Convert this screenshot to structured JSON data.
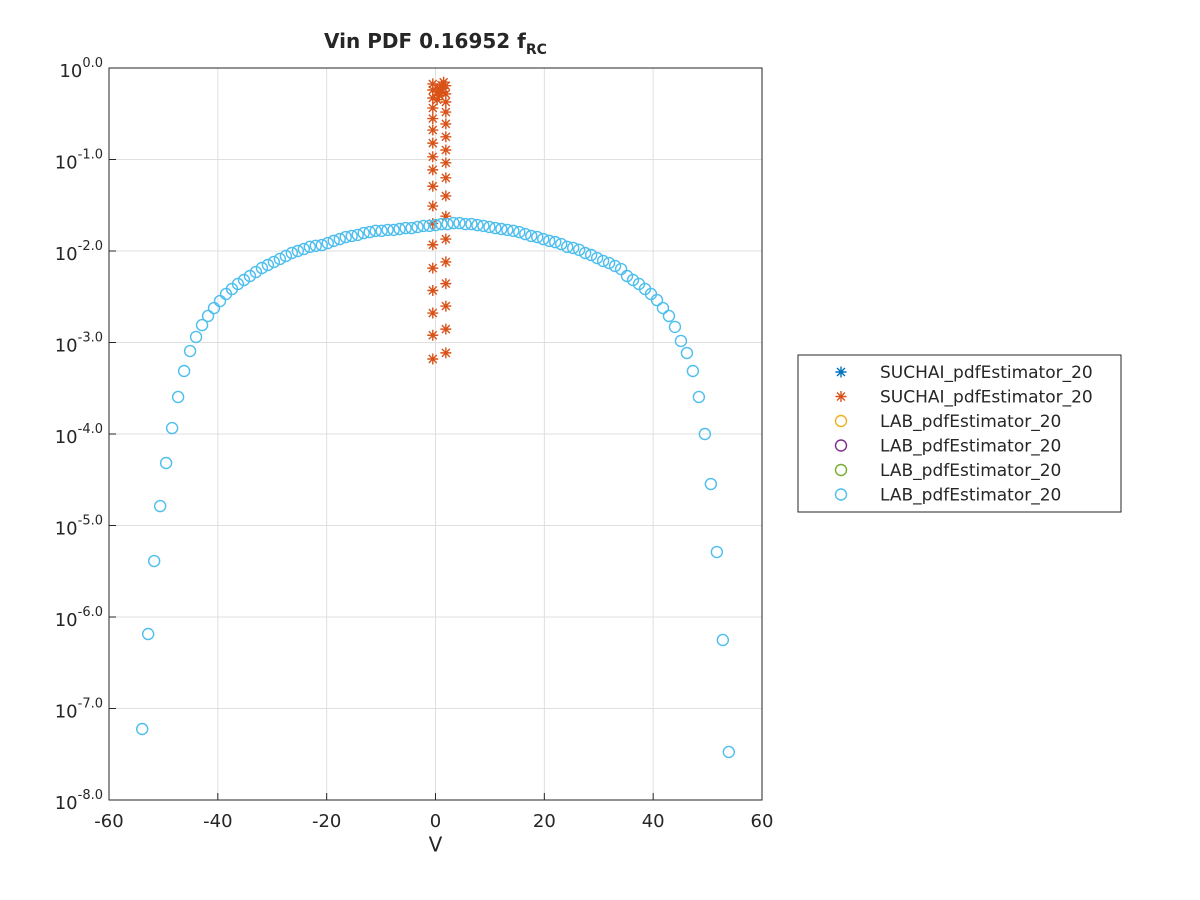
{
  "chart_data": {
    "type": "scatter",
    "title": "Vin PDF 0.16952 f_RC",
    "x_label": "V",
    "xlim": [
      -60,
      60
    ],
    "xticks": [
      -60,
      -40,
      -20,
      0,
      20,
      40,
      60
    ],
    "ylim": [
      1e-08,
      1
    ],
    "log_y": true,
    "grid": true,
    "legend_position": "east-outside",
    "yticks": [
      {
        "value": 1e-08,
        "label": "10^-8.0"
      },
      {
        "value": 1e-07,
        "label": "10^-7.0"
      },
      {
        "value": 1e-06,
        "label": "10^-6.0"
      },
      {
        "value": 1e-05,
        "label": "10^-5.0"
      },
      {
        "value": 0.0001,
        "label": "10^-4.0"
      },
      {
        "value": 0.001,
        "label": "10^-3.0"
      },
      {
        "value": 0.01,
        "label": "10^-2.0"
      },
      {
        "value": 0.1,
        "label": "10^-1.0"
      },
      {
        "value": 1,
        "label": "10^0.0"
      }
    ],
    "series": [
      {
        "name": "SUCHAI_pdfEstimator_20",
        "color": "#0072BD",
        "marker": "star",
        "x": [],
        "values": []
      },
      {
        "name": "SUCHAI_pdfEstimator_20",
        "color": "#D95319",
        "marker": "star",
        "x": [
          -0.5,
          -0.5,
          -0.5,
          -0.5,
          -0.5,
          -0.5,
          -0.5,
          -0.5,
          -0.5,
          -0.5,
          -0.5,
          -0.5,
          -0.5,
          -0.5,
          -0.5,
          -0.5,
          -0.5,
          -0.5,
          1.9,
          1.9,
          1.9,
          1.9,
          1.9,
          1.9,
          1.9,
          1.9,
          1.9,
          1.9,
          1.9,
          1.9,
          1.9,
          1.9,
          1.9,
          1.9,
          1.9,
          0.3,
          0.7,
          1.1,
          1.5,
          0.3,
          0.7,
          1.1,
          1.5
        ],
        "values": [
          0.00066,
          0.0012,
          0.0021,
          0.0037,
          0.0065,
          0.0117,
          0.02,
          0.031,
          0.051,
          0.077,
          0.107,
          0.151,
          0.21,
          0.28,
          0.365,
          0.47,
          0.575,
          0.67,
          0.00077,
          0.0014,
          0.0025,
          0.0044,
          0.0076,
          0.0135,
          0.024,
          0.04,
          0.063,
          0.092,
          0.127,
          0.177,
          0.245,
          0.33,
          0.425,
          0.52,
          0.64,
          0.55,
          0.6,
          0.65,
          0.7,
          0.45,
          0.5,
          0.55,
          0.6
        ]
      },
      {
        "name": "LAB_pdfEstimator_20",
        "color": "#EDB120",
        "marker": "circle",
        "x": [],
        "values": []
      },
      {
        "name": "LAB_pdfEstimator_20",
        "color": "#7E2F8E",
        "marker": "circle",
        "x": [],
        "values": []
      },
      {
        "name": "LAB_pdfEstimator_20",
        "color": "#77AC30",
        "marker": "circle",
        "x": [],
        "values": []
      },
      {
        "name": "LAB_pdfEstimator_20",
        "color": "#4DBEEE",
        "marker": "circle",
        "x": [
          -53.9,
          -52.8,
          -51.7,
          -50.6,
          -49.5,
          -48.4,
          -47.3,
          -46.2,
          -45.1,
          -44.0,
          -42.9,
          -41.8,
          -40.7,
          -39.6,
          -38.5,
          -37.4,
          -36.3,
          -35.2,
          -34.1,
          -33.0,
          -31.9,
          -30.8,
          -29.7,
          -28.6,
          -27.5,
          -26.4,
          -25.3,
          -24.2,
          -23.1,
          -22.0,
          -20.9,
          -19.8,
          -18.7,
          -17.6,
          -16.5,
          -15.4,
          -14.3,
          -13.2,
          -12.1,
          -11.0,
          -9.9,
          -8.8,
          -7.7,
          -6.6,
          -5.5,
          -4.4,
          -3.3,
          -2.2,
          -1.1,
          0,
          1.1,
          2.2,
          3.3,
          4.4,
          5.5,
          6.6,
          7.7,
          8.8,
          9.9,
          11.0,
          12.1,
          13.2,
          14.3,
          15.4,
          16.5,
          17.6,
          18.7,
          19.8,
          20.9,
          22.0,
          23.1,
          24.2,
          25.3,
          26.4,
          27.5,
          28.6,
          29.7,
          30.8,
          31.9,
          33.0,
          34.1,
          35.2,
          36.3,
          37.4,
          38.5,
          39.6,
          40.7,
          41.8,
          42.9,
          44.0,
          45.1,
          46.2,
          47.3,
          48.4,
          49.5,
          50.6,
          51.7,
          52.8,
          53.9
        ],
        "values": [
          5.97e-08,
          6.52e-07,
          4.09e-06,
          1.63e-05,
          4.82e-05,
          0.000116,
          0.000254,
          0.000488,
          0.000807,
          0.00115,
          0.00155,
          0.00195,
          0.00238,
          0.00284,
          0.00339,
          0.00385,
          0.00436,
          0.00482,
          0.00533,
          0.00589,
          0.00652,
          0.00703,
          0.00759,
          0.00818,
          0.00882,
          0.00951,
          0.01,
          0.0105,
          0.0111,
          0.0114,
          0.0116,
          0.0122,
          0.0129,
          0.0135,
          0.0142,
          0.0146,
          0.015,
          0.0157,
          0.0161,
          0.0166,
          0.0166,
          0.017,
          0.017,
          0.0174,
          0.0178,
          0.0178,
          0.0183,
          0.0188,
          0.0188,
          0.0192,
          0.0197,
          0.0197,
          0.0202,
          0.0202,
          0.0197,
          0.0197,
          0.0192,
          0.0188,
          0.0183,
          0.0178,
          0.0174,
          0.017,
          0.0166,
          0.0161,
          0.0153,
          0.0146,
          0.0142,
          0.0135,
          0.0129,
          0.0125,
          0.0119,
          0.0111,
          0.0108,
          0.0103,
          0.00951,
          0.00904,
          0.00838,
          0.00778,
          0.00739,
          0.00686,
          0.00635,
          0.00533,
          0.00482,
          0.00436,
          0.00385,
          0.00339,
          0.00291,
          0.00238,
          0.00195,
          0.00148,
          0.00104,
          0.000767,
          0.000488,
          0.000254,
          0.0001,
          2.84e-05,
          5.13e-06,
          5.61e-07,
          3.35e-08
        ]
      }
    ]
  }
}
